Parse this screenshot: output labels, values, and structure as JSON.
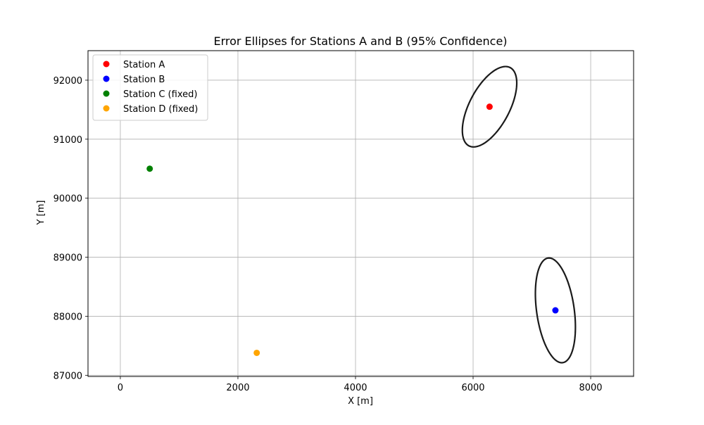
{
  "chart_data": {
    "type": "scatter",
    "title": "Error Ellipses for Stations A and B (95% Confidence)",
    "xlabel": "X [m]",
    "ylabel": "Y [m]",
    "xlim": [
      -550,
      8730
    ],
    "ylim": [
      86980,
      92500
    ],
    "xticks": [
      0,
      2000,
      4000,
      6000,
      8000
    ],
    "yticks": [
      87000,
      88000,
      89000,
      90000,
      91000,
      92000
    ],
    "grid": true,
    "legend_position": "top-left",
    "series": [
      {
        "name": "Station A",
        "color": "#ff0000",
        "x": 6280,
        "y": 91550
      },
      {
        "name": "Station B",
        "color": "#0000ff",
        "x": 7400,
        "y": 88100
      },
      {
        "name": "Station C (fixed)",
        "color": "#008000",
        "x": 500,
        "y": 90500
      },
      {
        "name": "Station D (fixed)",
        "color": "#ffa500",
        "x": 2320,
        "y": 87380
      }
    ],
    "ellipses": [
      {
        "station": "Station A",
        "center": [
          6280,
          91550
        ],
        "semi_major": 750,
        "semi_minor": 340,
        "angle_deg": 62,
        "color": "#1a1a1a"
      },
      {
        "station": "Station B",
        "center": [
          7400,
          88100
        ],
        "semi_major": 895,
        "semi_minor": 320,
        "angle_deg": 98,
        "color": "#1a1a1a"
      }
    ]
  }
}
